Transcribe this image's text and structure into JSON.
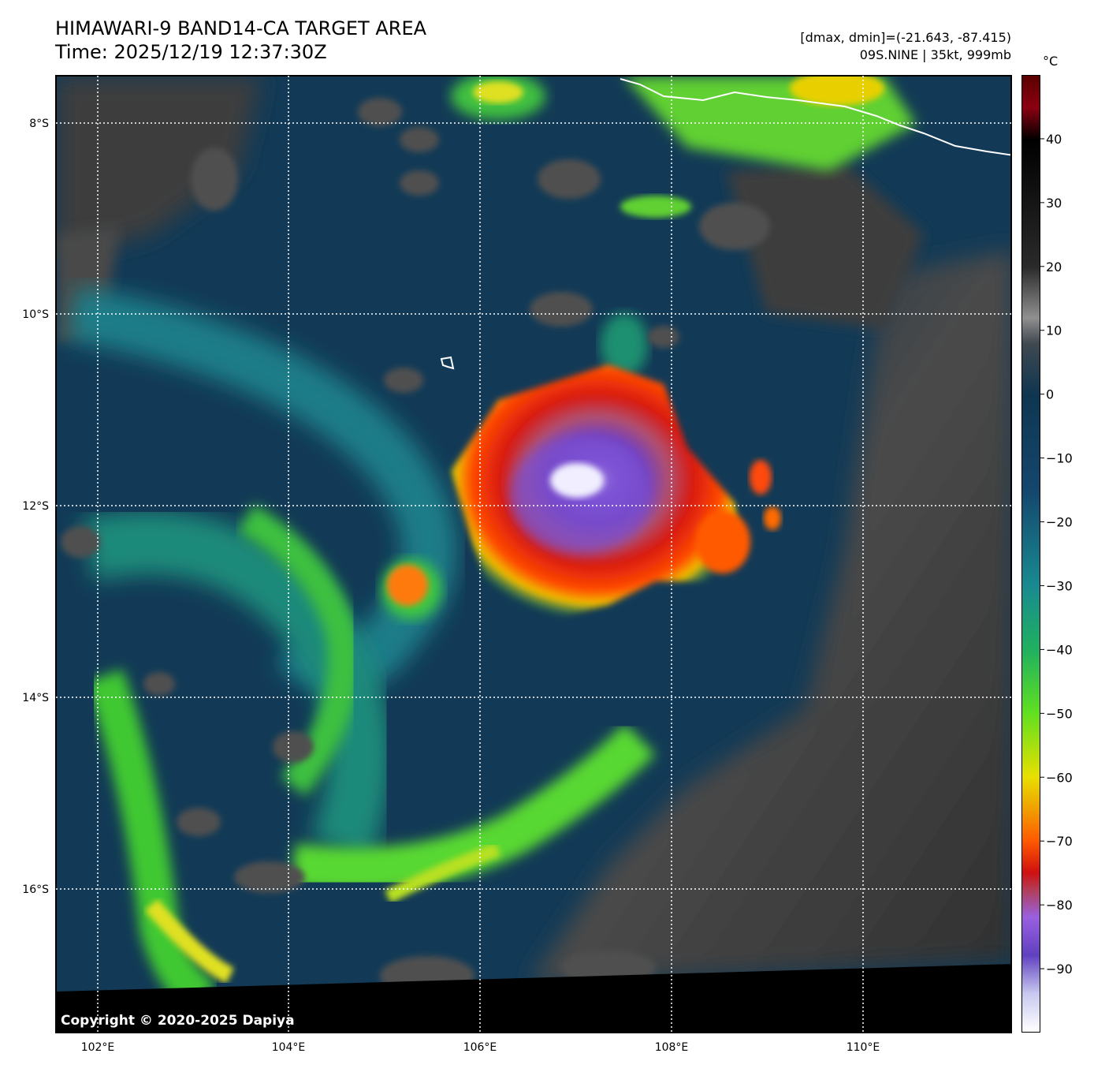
{
  "header": {
    "title_line1": "HIMAWARI-9 BAND14-CA TARGET AREA",
    "title_line2": "Time: 2025/12/19 12:37:30Z",
    "range_text": "[dmax, dmin]=(-21.643, -87.415)",
    "storm_text": "09S.NINE | 35kt, 999mb"
  },
  "colorbar": {
    "unit": "°C",
    "ticks": [
      "40",
      "30",
      "20",
      "10",
      "0",
      "−10",
      "−20",
      "−30",
      "−40",
      "−50",
      "−60",
      "−70",
      "−80",
      "−90"
    ],
    "tick_values": [
      40,
      30,
      20,
      10,
      0,
      -10,
      -20,
      -30,
      -40,
      -50,
      -60,
      -70,
      -80,
      -90
    ],
    "vmin": -100,
    "vmax": 50,
    "stops": [
      {
        "v": 50,
        "c": "#5a0000"
      },
      {
        "v": 45,
        "c": "#8b0010"
      },
      {
        "v": 40,
        "c": "#000000"
      },
      {
        "v": 20,
        "c": "#2a2a2a"
      },
      {
        "v": 12,
        "c": "#909090"
      },
      {
        "v": 8,
        "c": "#404850"
      },
      {
        "v": 0,
        "c": "#0f3650"
      },
      {
        "v": -15,
        "c": "#14466e"
      },
      {
        "v": -30,
        "c": "#188a90"
      },
      {
        "v": -40,
        "c": "#20b060"
      },
      {
        "v": -50,
        "c": "#60e020"
      },
      {
        "v": -60,
        "c": "#e8e000"
      },
      {
        "v": -65,
        "c": "#f0a000"
      },
      {
        "v": -70,
        "c": "#ff5a00"
      },
      {
        "v": -75,
        "c": "#d01010"
      },
      {
        "v": -78,
        "c": "#b04060"
      },
      {
        "v": -82,
        "c": "#9a60e0"
      },
      {
        "v": -88,
        "c": "#6040c0"
      },
      {
        "v": -94,
        "c": "#c8c8f0"
      },
      {
        "v": -100,
        "c": "#ffffff"
      }
    ]
  },
  "axes": {
    "lon_labels": [
      "102°E",
      "104°E",
      "106°E",
      "108°E",
      "110°E"
    ],
    "lat_labels": [
      "8°S",
      "10°S",
      "12°S",
      "14°S",
      "16°S"
    ]
  },
  "copyright": "Copyright © 2020-2025 Dapiya",
  "colors": {
    "ocean_clear": "#123a56",
    "cloud_warm": "#505050",
    "cold_core": "#7050d0",
    "cdo_red": "#e02010"
  }
}
